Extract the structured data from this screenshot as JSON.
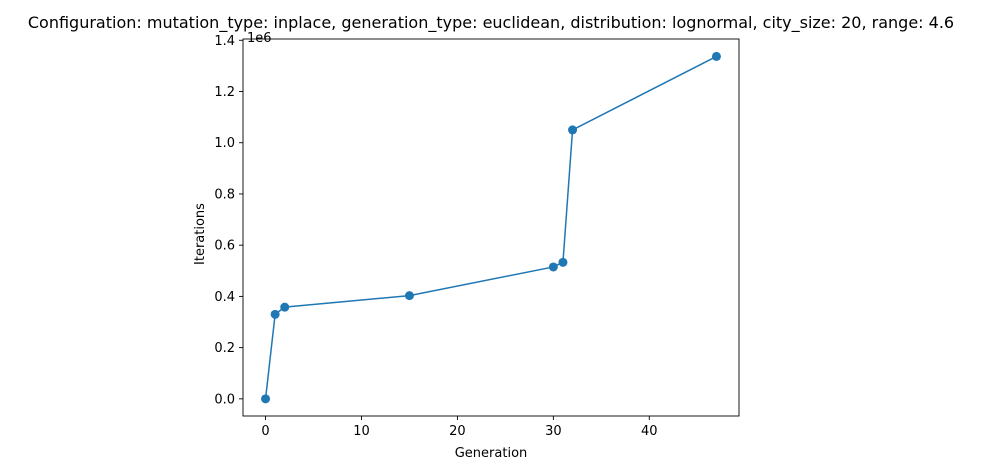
{
  "chart_data": {
    "type": "line",
    "title": "Configuration: mutation_type: inplace, generation_type: euclidean, distribution: lognormal, city_size: 20, range: 4.6",
    "xlabel": "Generation",
    "ylabel": "Iterations",
    "y_offset_label": "1e6",
    "xlim": [
      -2.35,
      49.35
    ],
    "ylim": [
      -0.067,
      1.405
    ],
    "x_ticks": [
      0,
      10,
      20,
      30,
      40
    ],
    "x_tick_labels": [
      "0",
      "10",
      "20",
      "30",
      "40"
    ],
    "y_ticks": [
      0.0,
      0.2,
      0.4,
      0.6,
      0.8,
      1.0,
      1.2,
      1.4
    ],
    "y_tick_labels": [
      "0.0",
      "0.2",
      "0.4",
      "0.6",
      "0.8",
      "1.0",
      "1.2",
      "1.4"
    ],
    "grid": false,
    "series": [
      {
        "color": "#1f77b4",
        "marker": "circle",
        "x": [
          0,
          1,
          2,
          15,
          30,
          31,
          32,
          47
        ],
        "y": [
          0.0,
          0.33,
          0.358,
          0.403,
          0.515,
          0.533,
          1.05,
          1.337
        ]
      }
    ]
  }
}
